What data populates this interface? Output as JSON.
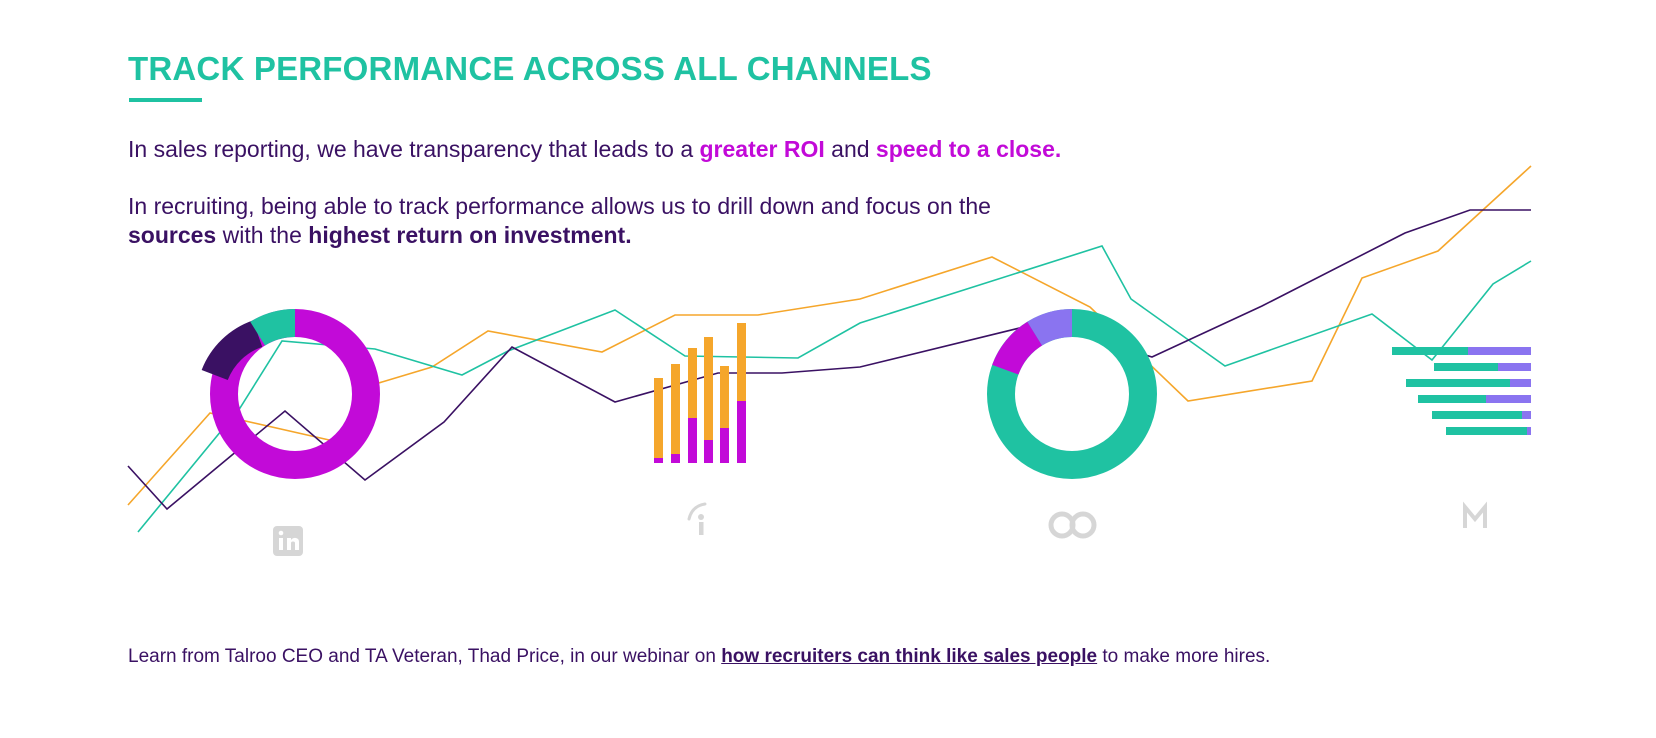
{
  "title": "TRACK PERFORMANCE ACROSS ALL CHANNELS",
  "paragraph1": {
    "text1": "In sales reporting, we have transparency that leads to a ",
    "highlight1": "greater ROI",
    "text2": " and ",
    "highlight2": "speed to a close."
  },
  "paragraph2": {
    "text1": "In recruiting, being able to track performance allows us to drill down and focus on the",
    "bold1": "sources",
    "text2": " with the ",
    "bold2": "highest return on investment."
  },
  "footer": {
    "text1": "Learn from Talroo CEO and TA Veteran, Thad Price, in our webinar on ",
    "link": "how recruiters can think like sales people",
    "text2": " to make more hires."
  },
  "colors": {
    "teal": "#1fc2a2",
    "magenta": "#c20ad8",
    "orange": "#f5a62b",
    "purple": "#3a1163",
    "lavender": "#8a74f0",
    "icon_gray": "#d6d6d6"
  },
  "icons": [
    "linkedin-icon",
    "indeed-icon",
    "link-icon",
    "monster-icon"
  ]
}
